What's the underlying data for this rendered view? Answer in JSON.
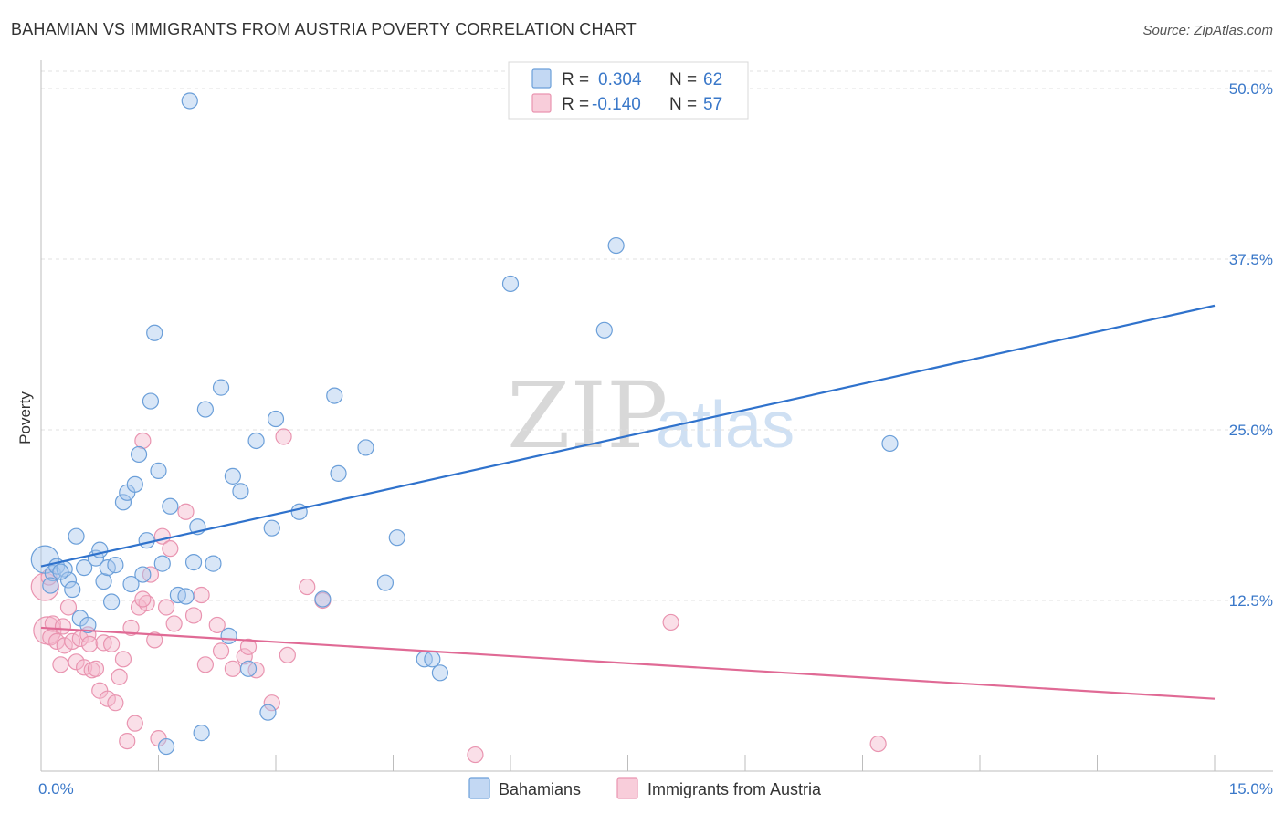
{
  "header": {
    "title": "BAHAMIAN VS IMMIGRANTS FROM AUSTRIA POVERTY CORRELATION CHART",
    "source": "Source: ZipAtlas.com"
  },
  "watermark": {
    "zip": "ZIP",
    "atlas": "atlas"
  },
  "colors": {
    "blue_fill": "#a9c8ee",
    "blue_stroke": "#6b9fd9",
    "blue_line": "#2f72cc",
    "pink_fill": "#f5b8cb",
    "pink_stroke": "#e994b0",
    "pink_line": "#e06a95",
    "tick_text": "#3a78c9",
    "grid": "#e0e0e0"
  },
  "legend": {
    "rows": [
      {
        "r_label": "R =",
        "r_value": "0.304",
        "n_label": "N =",
        "n_value": "62"
      },
      {
        "r_label": "R =",
        "r_value": "-0.140",
        "n_label": "N =",
        "n_value": "57"
      }
    ]
  },
  "bottom_legend": [
    "Bahamians",
    "Immigrants from Austria"
  ],
  "chart_data": {
    "type": "scatter",
    "title": "BAHAMIAN VS IMMIGRANTS FROM AUSTRIA POVERTY CORRELATION CHART",
    "xlabel": "",
    "ylabel": "Poverty",
    "xlim": [
      0,
      15
    ],
    "ylim": [
      0,
      50
    ],
    "x_ticks": [
      0,
      1.5,
      3,
      4.5,
      6,
      7.5,
      9,
      10.5,
      12,
      13.5,
      15
    ],
    "x_tick_labels": {
      "0": "0.0%",
      "15": "15.0%"
    },
    "y_ticks": [
      12.5,
      25,
      37.5,
      50
    ],
    "y_tick_labels": [
      "12.5%",
      "25.0%",
      "37.5%",
      "50.0%"
    ],
    "series": [
      {
        "name": "Bahamians",
        "r": 0.304,
        "n": 62,
        "trend": {
          "x": [
            0,
            15
          ],
          "y": [
            15.0,
            34.1
          ]
        },
        "points": [
          [
            0.05,
            15.5
          ],
          [
            0.15,
            14.5
          ],
          [
            0.2,
            15.0
          ],
          [
            0.3,
            14.8
          ],
          [
            0.35,
            14.0
          ],
          [
            0.4,
            13.3
          ],
          [
            0.45,
            17.2
          ],
          [
            0.5,
            11.2
          ],
          [
            0.55,
            14.9
          ],
          [
            0.6,
            10.7
          ],
          [
            0.7,
            15.6
          ],
          [
            0.75,
            16.2
          ],
          [
            0.8,
            13.9
          ],
          [
            0.85,
            14.9
          ],
          [
            0.9,
            12.4
          ],
          [
            0.95,
            15.1
          ],
          [
            1.05,
            19.7
          ],
          [
            1.1,
            20.4
          ],
          [
            1.15,
            13.7
          ],
          [
            1.2,
            21.0
          ],
          [
            1.25,
            23.2
          ],
          [
            1.3,
            14.4
          ],
          [
            1.35,
            16.9
          ],
          [
            1.4,
            27.1
          ],
          [
            1.45,
            32.1
          ],
          [
            1.5,
            22.0
          ],
          [
            1.55,
            15.2
          ],
          [
            1.65,
            19.4
          ],
          [
            1.75,
            12.9
          ],
          [
            1.85,
            12.8
          ],
          [
            1.9,
            49.1
          ],
          [
            1.95,
            15.3
          ],
          [
            2.0,
            17.9
          ],
          [
            2.05,
            2.8
          ],
          [
            2.1,
            26.5
          ],
          [
            2.2,
            15.2
          ],
          [
            2.3,
            28.1
          ],
          [
            2.4,
            9.9
          ],
          [
            2.45,
            21.6
          ],
          [
            2.55,
            20.5
          ],
          [
            2.65,
            7.5
          ],
          [
            2.75,
            24.2
          ],
          [
            2.9,
            4.3
          ],
          [
            2.95,
            17.8
          ],
          [
            3.0,
            25.8
          ],
          [
            3.3,
            19.0
          ],
          [
            3.6,
            12.6
          ],
          [
            3.75,
            27.5
          ],
          [
            3.8,
            21.8
          ],
          [
            4.15,
            23.7
          ],
          [
            4.4,
            13.8
          ],
          [
            4.55,
            17.1
          ],
          [
            4.9,
            8.2
          ],
          [
            5.0,
            8.2
          ],
          [
            5.1,
            7.2
          ],
          [
            6.0,
            35.7
          ],
          [
            7.2,
            32.3
          ],
          [
            7.35,
            38.5
          ],
          [
            10.85,
            24.0
          ],
          [
            1.6,
            1.8
          ],
          [
            0.25,
            14.6
          ],
          [
            0.12,
            13.6
          ]
        ]
      },
      {
        "name": "Immigrants from Austria",
        "r": -0.14,
        "n": 57,
        "trend": {
          "x": [
            0,
            15
          ],
          "y": [
            10.5,
            5.3
          ]
        },
        "points": [
          [
            0.05,
            13.5
          ],
          [
            0.08,
            10.3
          ],
          [
            0.12,
            9.8
          ],
          [
            0.15,
            10.8
          ],
          [
            0.2,
            9.5
          ],
          [
            0.25,
            7.8
          ],
          [
            0.28,
            10.6
          ],
          [
            0.3,
            9.2
          ],
          [
            0.35,
            12.0
          ],
          [
            0.4,
            9.5
          ],
          [
            0.45,
            8.0
          ],
          [
            0.5,
            9.7
          ],
          [
            0.55,
            7.6
          ],
          [
            0.6,
            10.0
          ],
          [
            0.62,
            9.3
          ],
          [
            0.65,
            7.4
          ],
          [
            0.7,
            7.5
          ],
          [
            0.75,
            5.9
          ],
          [
            0.8,
            9.4
          ],
          [
            0.85,
            5.3
          ],
          [
            0.9,
            9.3
          ],
          [
            0.95,
            5.0
          ],
          [
            1.0,
            6.9
          ],
          [
            1.05,
            8.2
          ],
          [
            1.1,
            2.2
          ],
          [
            1.15,
            10.5
          ],
          [
            1.2,
            3.5
          ],
          [
            1.25,
            12.0
          ],
          [
            1.3,
            24.2
          ],
          [
            1.35,
            12.3
          ],
          [
            1.4,
            14.4
          ],
          [
            1.45,
            9.6
          ],
          [
            1.5,
            2.4
          ],
          [
            1.55,
            17.2
          ],
          [
            1.6,
            12.0
          ],
          [
            1.65,
            16.3
          ],
          [
            1.7,
            10.8
          ],
          [
            1.85,
            19.0
          ],
          [
            1.95,
            11.4
          ],
          [
            2.05,
            12.9
          ],
          [
            2.1,
            7.8
          ],
          [
            2.25,
            10.7
          ],
          [
            2.3,
            8.8
          ],
          [
            2.45,
            7.5
          ],
          [
            2.6,
            8.4
          ],
          [
            2.65,
            9.1
          ],
          [
            2.75,
            7.4
          ],
          [
            2.95,
            5.0
          ],
          [
            3.1,
            24.5
          ],
          [
            3.15,
            8.5
          ],
          [
            3.4,
            13.5
          ],
          [
            3.6,
            12.5
          ],
          [
            5.55,
            1.2
          ],
          [
            8.05,
            10.9
          ],
          [
            10.7,
            2.0
          ],
          [
            0.1,
            14.2
          ],
          [
            1.3,
            12.6
          ]
        ]
      }
    ]
  }
}
